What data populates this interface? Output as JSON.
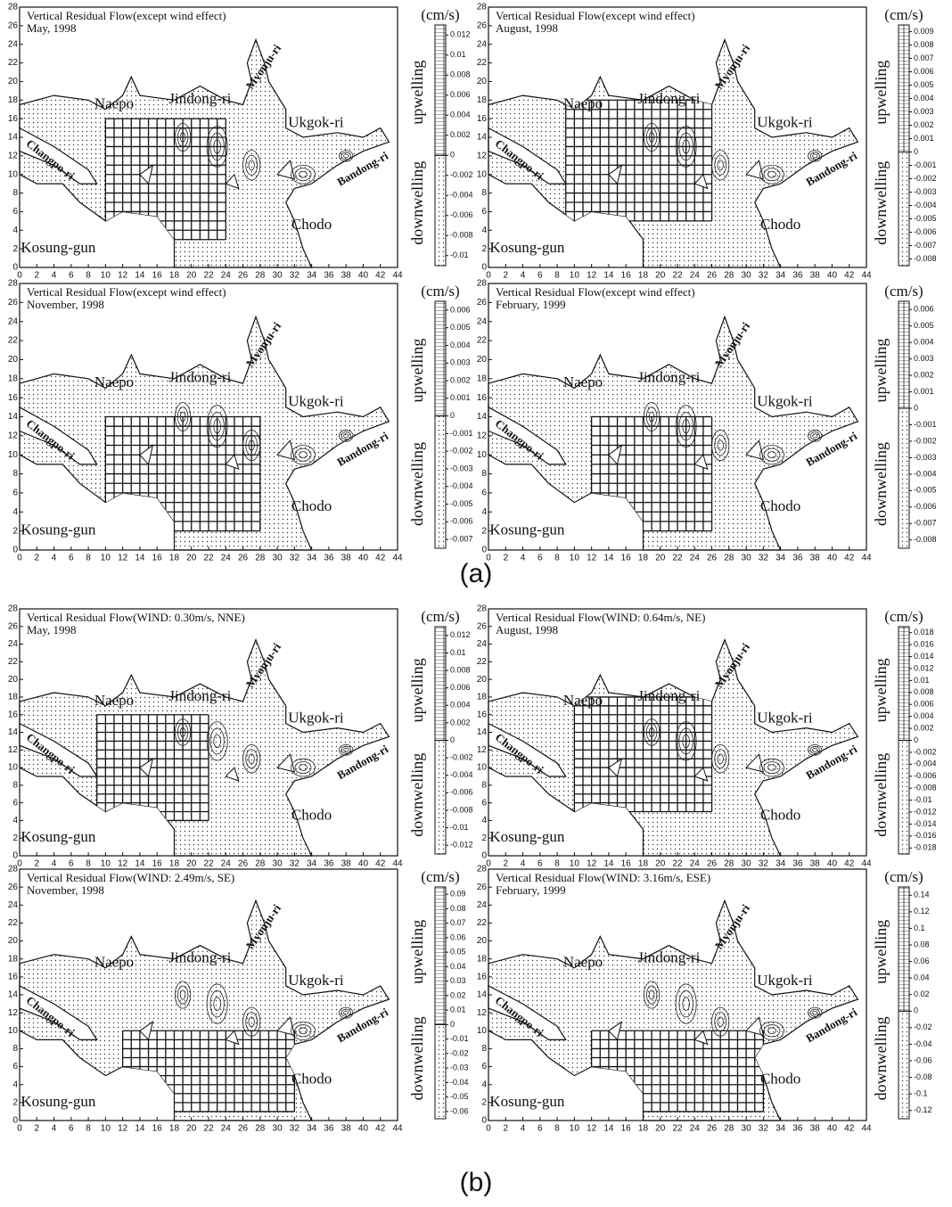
{
  "figure": {
    "x_ticks": [
      0,
      2,
      4,
      6,
      8,
      10,
      12,
      14,
      16,
      18,
      20,
      22,
      24,
      26,
      28,
      30,
      32,
      34,
      36,
      38,
      40,
      42,
      44
    ],
    "y_ticks": [
      0,
      2,
      4,
      6,
      8,
      10,
      12,
      14,
      16,
      18,
      20,
      22,
      24,
      26,
      28
    ],
    "places": [
      "Naepo",
      "Jindong-ri",
      "Myonju-ri",
      "Ukgok-ri",
      "Changpo-ri",
      "Bandong-ri",
      "Kosung-gun",
      "Chodo"
    ],
    "unit": "(cm/s)",
    "upwelling": "upwelling",
    "downwelling": "downwelling",
    "groups": [
      {
        "label": "(a)",
        "panels": [
          {
            "title": "Vertical Residual Flow(except wind effect)",
            "date": "May, 1998",
            "colorbar_ticks": [
              0.012,
              0.01,
              0.008,
              0.006,
              0.004,
              0.002,
              0,
              -0.002,
              -0.004,
              -0.006,
              -0.008,
              -0.01
            ]
          },
          {
            "title": "Vertical Residual Flow(except wind effect)",
            "date": "August, 1998",
            "colorbar_ticks": [
              0.009,
              0.008,
              0.007,
              0.006,
              0.005,
              0.004,
              0.003,
              0.002,
              0.001,
              0,
              -0.001,
              -0.002,
              -0.003,
              -0.004,
              -0.005,
              -0.006,
              -0.007,
              -0.008
            ]
          },
          {
            "title": "Vertical Residual Flow(except wind effect)",
            "date": "November, 1998",
            "colorbar_ticks": [
              0.006,
              0.005,
              0.004,
              0.003,
              0.002,
              0.001,
              0,
              -0.001,
              -0.002,
              -0.003,
              -0.004,
              -0.005,
              -0.006,
              -0.007
            ]
          },
          {
            "title": "Vertical Residual Flow(except wind effect)",
            "date": "February, 1999",
            "colorbar_ticks": [
              0.006,
              0.005,
              0.004,
              0.003,
              0.002,
              0.001,
              0,
              -0.001,
              -0.002,
              -0.003,
              -0.004,
              -0.005,
              -0.006,
              -0.007,
              -0.008
            ]
          }
        ]
      },
      {
        "label": "(b)",
        "panels": [
          {
            "title": "Vertical Residual Flow(WIND: 0.30m/s, NNE)",
            "date": "May, 1998",
            "colorbar_ticks": [
              0.012,
              0.01,
              0.008,
              0.006,
              0.004,
              0.002,
              0,
              -0.002,
              -0.004,
              -0.006,
              -0.008,
              -0.01,
              -0.012
            ]
          },
          {
            "title": "Vertical Residual Flow(WIND: 0.64m/s, NE)",
            "date": "August, 1998",
            "colorbar_ticks": [
              0.018,
              0.016,
              0.014,
              0.012,
              0.01,
              0.008,
              0.006,
              0.004,
              0.002,
              0,
              -0.002,
              -0.004,
              -0.006,
              -0.008,
              -0.01,
              -0.012,
              -0.014,
              -0.016,
              -0.018
            ]
          },
          {
            "title": "Vertical Residual Flow(WIND: 2.49m/s, SE)",
            "date": "November, 1998",
            "colorbar_ticks": [
              0.09,
              0.08,
              0.07,
              0.06,
              0.05,
              0.04,
              0.03,
              0.02,
              0.01,
              0,
              -0.01,
              -0.02,
              -0.03,
              -0.04,
              -0.05,
              -0.06
            ]
          },
          {
            "title": "Vertical Residual Flow(WIND: 3.16m/s, ESE)",
            "date": "February, 1999",
            "colorbar_ticks": [
              0.14,
              0.12,
              0.1,
              0.08,
              0.06,
              0.04,
              0.02,
              0,
              -0.02,
              -0.04,
              -0.06,
              -0.08,
              -0.1,
              -0.12
            ]
          }
        ]
      }
    ]
  }
}
